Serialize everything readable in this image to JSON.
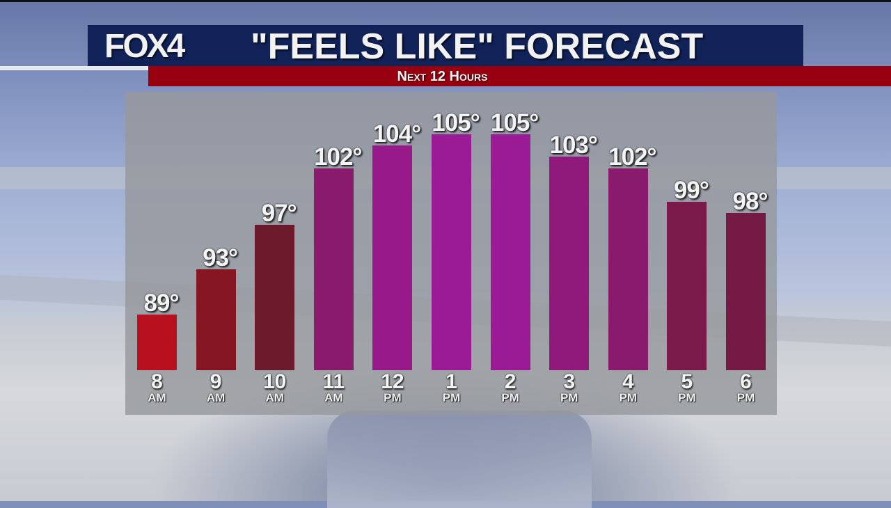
{
  "header": {
    "logo": "FOX4",
    "title": "\"FEELS LIKE\" FORECAST",
    "subtitle": "Next 12 Hours"
  },
  "colors": {
    "title_bg": "#102257",
    "subtitle_bg": "#980010",
    "panel_bg": "#96989c"
  },
  "chart_data": {
    "type": "bar",
    "title": "\"FEELS LIKE\" FORECAST",
    "subtitle": "Next 12 Hours",
    "xlabel": "",
    "ylabel": "",
    "categories": [
      "8 AM",
      "9 AM",
      "10 AM",
      "11 AM",
      "12 PM",
      "1 PM",
      "2 PM",
      "3 PM",
      "4 PM",
      "5 PM",
      "6 PM"
    ],
    "values": [
      89,
      93,
      97,
      102,
      104,
      105,
      105,
      103,
      102,
      99,
      98
    ],
    "value_labels": [
      "89°",
      "93°",
      "97°",
      "102°",
      "104°",
      "105°",
      "105°",
      "103°",
      "102°",
      "99°",
      "98°"
    ],
    "hours": [
      "8",
      "9",
      "10",
      "11",
      "12",
      "1",
      "2",
      "3",
      "4",
      "5",
      "6"
    ],
    "periods": [
      "AM",
      "AM",
      "AM",
      "AM",
      "PM",
      "PM",
      "PM",
      "PM",
      "PM",
      "PM",
      "PM"
    ],
    "bar_colors": [
      "#b8101f",
      "#861621",
      "#6c1a2c",
      "#8a1a6c",
      "#981a8a",
      "#9b1a96",
      "#9b1a96",
      "#901a7c",
      "#8a1a6c",
      "#7a1a4a",
      "#741a44"
    ],
    "grid": false,
    "legend": "none",
    "units": "°F"
  }
}
